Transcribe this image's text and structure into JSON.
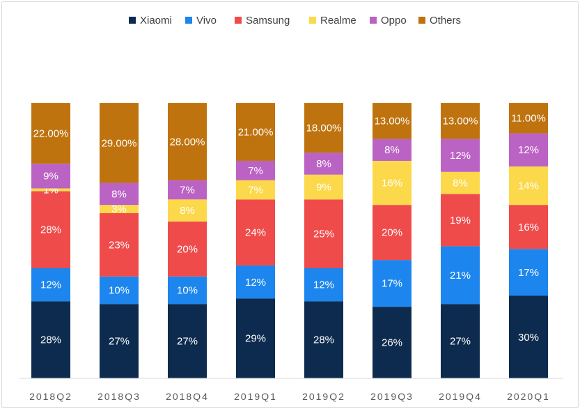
{
  "chart_data": {
    "type": "bar",
    "stacked": true,
    "percent_stacked": true,
    "title": "",
    "xlabel": "",
    "ylabel": "",
    "legend_position": "top-center",
    "grid": false,
    "categories": [
      "2018Q2",
      "2018Q3",
      "2018Q4",
      "2019Q1",
      "2019Q2",
      "2019Q3",
      "2019Q4",
      "2020Q1"
    ],
    "series": [
      {
        "name": "Xiaomi",
        "color": "#0d2b4e",
        "text_color": "#ffffff",
        "values": [
          28,
          27,
          27,
          29,
          28,
          26,
          27,
          30
        ],
        "labels": [
          "28%",
          "27%",
          "27%",
          "29%",
          "28%",
          "26%",
          "27%",
          "30%"
        ]
      },
      {
        "name": "Vivo",
        "color": "#1c86ee",
        "text_color": "#ffffff",
        "values": [
          12,
          10,
          10,
          12,
          12,
          17,
          21,
          17
        ],
        "labels": [
          "12%",
          "10%",
          "10%",
          "12%",
          "12%",
          "17%",
          "21%",
          "17%"
        ]
      },
      {
        "name": "Samsung",
        "color": "#f04b4b",
        "text_color": "#ffffff",
        "values": [
          28,
          23,
          20,
          24,
          25,
          20,
          19,
          16
        ],
        "labels": [
          "28%",
          "23%",
          "20%",
          "24%",
          "25%",
          "20%",
          "19%",
          "16%"
        ]
      },
      {
        "name": "Realme",
        "color": "#fbd94a",
        "text_color": "#ffffff",
        "values": [
          1,
          3,
          8,
          7,
          9,
          16,
          8,
          14
        ],
        "labels": [
          "1%",
          "3%",
          "8%",
          "7%",
          "9%",
          "16%",
          "8%",
          "14%"
        ]
      },
      {
        "name": "Oppo",
        "color": "#bb63c4",
        "text_color": "#ffffff",
        "values": [
          9,
          8,
          7,
          7,
          8,
          8,
          12,
          12
        ],
        "labels": [
          "9%",
          "8%",
          "7%",
          "7%",
          "8%",
          "8%",
          "12%",
          "12%"
        ]
      },
      {
        "name": "Others",
        "color": "#bf730f",
        "text_color": "#ffffff",
        "values": [
          22,
          29,
          28,
          21,
          18,
          13,
          13,
          11
        ],
        "labels": [
          "22.00%",
          "29.00%",
          "28.00%",
          "21.00%",
          "18.00%",
          "13.00%",
          "13.00%",
          "11.00%"
        ]
      }
    ]
  }
}
